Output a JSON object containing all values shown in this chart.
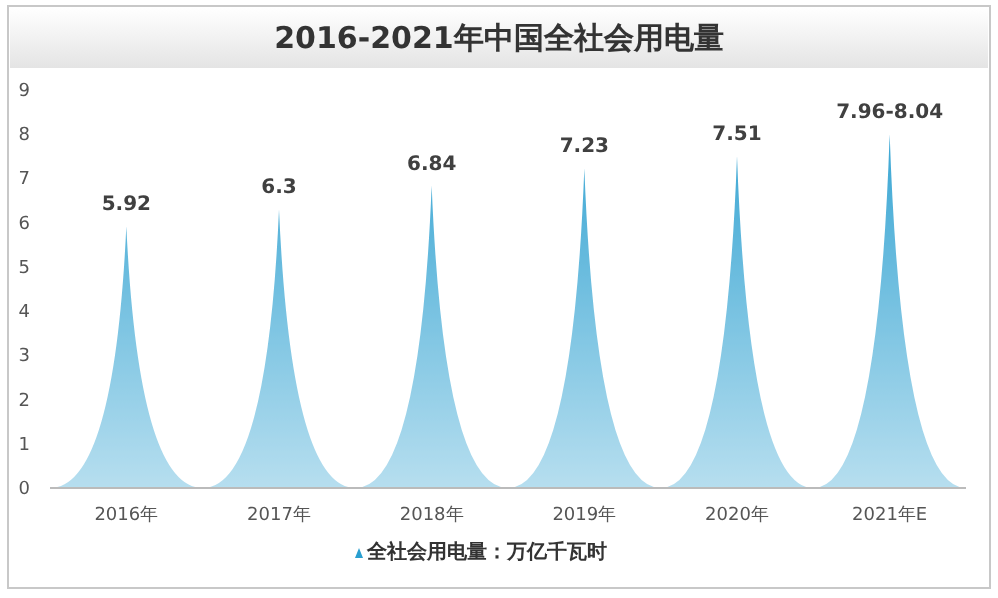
{
  "chart_data": {
    "type": "bar",
    "title": "2016-2021年中国全社会用电量",
    "categories": [
      "2016年",
      "2017年",
      "2018年",
      "2019年",
      "2020年",
      "2021年E"
    ],
    "series": [
      {
        "name": "全社会用电量：万亿千瓦时",
        "color": "#2a9fd0",
        "values": [
          5.92,
          6.3,
          6.84,
          7.23,
          7.51,
          8.0
        ],
        "value_labels": [
          "5.92",
          "6.3",
          "6.84",
          "7.23",
          "7.51",
          "7.96-8.04"
        ]
      }
    ],
    "ylim": [
      0,
      9
    ],
    "yticks": [
      0,
      1,
      2,
      3,
      4,
      5,
      6,
      7,
      8,
      9
    ],
    "grid": false,
    "legend": "bottom"
  }
}
